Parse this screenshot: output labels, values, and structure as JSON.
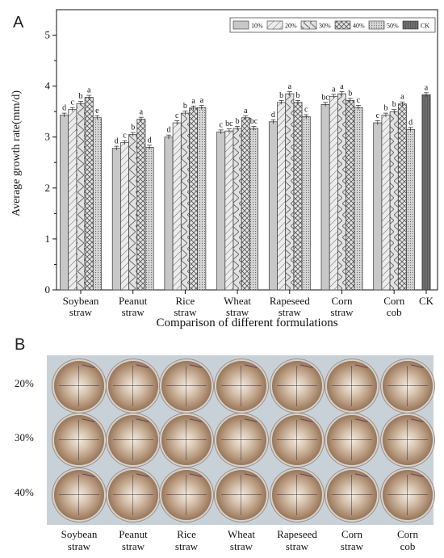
{
  "panel_labels": {
    "a": "A",
    "b": "B"
  },
  "chart_data": {
    "type": "bar",
    "title": "",
    "xlabel": "Comparison of different formulations",
    "ylabel": "Average growth rate(mm/d)",
    "ylim": [
      0,
      5.5
    ],
    "yticks": [
      0,
      1,
      2,
      3,
      4,
      5
    ],
    "grid": false,
    "legend_position": "top-right",
    "categories": [
      "Soybean\nstraw",
      "Peanut\nstraw",
      "Rice\nstraw",
      "Wheat\nstraw",
      "Rapeseed\nstraw",
      "Corn\nstraw",
      "Corn\ncob",
      "CK"
    ],
    "series": [
      {
        "name": "10%",
        "values": [
          3.43,
          2.78,
          3.0,
          3.1,
          3.3,
          3.64,
          3.28,
          null
        ],
        "letters": [
          "d",
          "d",
          "d",
          "c",
          "d",
          "bc",
          "c",
          null
        ]
      },
      {
        "name": "20%",
        "values": [
          3.54,
          2.89,
          3.28,
          3.12,
          3.68,
          3.8,
          3.43,
          null
        ],
        "letters": [
          "c",
          "c",
          "c",
          "bc",
          "b",
          "a",
          "b",
          null
        ]
      },
      {
        "name": "30%",
        "values": [
          3.66,
          3.05,
          3.47,
          3.17,
          3.85,
          3.85,
          3.5,
          null
        ],
        "letters": [
          "b",
          "b",
          "b",
          "b",
          "a",
          "a",
          "b",
          null
        ]
      },
      {
        "name": "40%",
        "values": [
          3.78,
          3.35,
          3.57,
          3.38,
          3.68,
          3.72,
          3.65,
          null
        ],
        "letters": [
          "a",
          "a",
          "a",
          "a",
          "b",
          "b",
          "a",
          null
        ]
      },
      {
        "name": "50%",
        "values": [
          3.38,
          2.8,
          3.58,
          3.17,
          3.4,
          3.58,
          3.15,
          null
        ],
        "letters": [
          "e",
          "d",
          "a",
          "bc",
          "c",
          "c",
          "d",
          null
        ]
      },
      {
        "name": "CK",
        "values": [
          null,
          null,
          null,
          null,
          null,
          null,
          null,
          3.83
        ],
        "letters": [
          null,
          null,
          null,
          null,
          null,
          null,
          null,
          "a"
        ]
      }
    ],
    "series_colors": [
      "#c8c8c8",
      "#e6e6e6",
      "#dcdcdc",
      "#e0e0e0",
      "#cfcfcf",
      "#6e6e6e"
    ]
  },
  "photo_panel": {
    "rows": [
      "20%",
      "30%",
      "40%"
    ],
    "columns": [
      "Soybean\nstraw",
      "Peanut\nstraw",
      "Rice\nstraw",
      "Wheat\nstraw",
      "Rapeseed\nstraw",
      "Corn\nstraw",
      "Corn\ncob"
    ]
  }
}
